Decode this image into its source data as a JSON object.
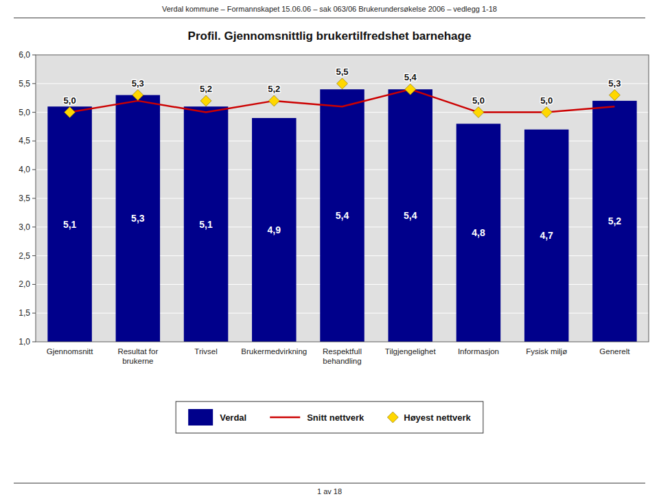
{
  "chart_data": {
    "type": "bar",
    "title": "Profil. Gjennomsnittlig brukertilfredshet  barnehage",
    "annotations": [
      "Verdal kommune – Formannskapet 15.06.06 – sak 063/06 Brukerundersøkelse 2006 – vedlegg 1-18",
      "1 av 18"
    ],
    "categories": [
      "Gjennomsnitt",
      "Resultat for\nbrukerne",
      "Trivsel",
      "Brukermedvirkning",
      "Respektfull\nbehandling",
      "Tilgjengelighet",
      "Informasjon",
      "Fysisk miljø",
      "Generelt"
    ],
    "series": [
      {
        "name": "Verdal",
        "type": "bar",
        "color": "#00008B",
        "values": [
          5.1,
          5.3,
          5.1,
          4.9,
          5.4,
          5.4,
          4.8,
          4.7,
          5.2
        ],
        "data_labels": true,
        "value_labels": [
          "5,1",
          "5,3",
          "5,1",
          "4,9",
          "5,4",
          "5,4",
          "4,8",
          "4,7",
          "5,2"
        ]
      },
      {
        "name": "Snitt nettverk",
        "type": "line",
        "color": "#CC0000",
        "marker": "none",
        "line_style": "solid",
        "values": [
          5.0,
          5.2,
          5.0,
          5.2,
          5.1,
          5.4,
          5.0,
          5.0,
          5.1
        ]
      },
      {
        "name": "Høyest nettverk",
        "type": "line",
        "color": "#FFD700",
        "marker": "diamond",
        "line_style": "none",
        "values": [
          5.0,
          5.3,
          5.2,
          5.2,
          5.5,
          5.4,
          5.0,
          5.0,
          5.3
        ],
        "data_labels": true,
        "value_labels": [
          "5,0",
          "5,3",
          "5,2",
          "5,2",
          "5,5",
          "5,4",
          "5,0",
          "5,0",
          "5,3"
        ]
      }
    ],
    "ylim": [
      1.0,
      6.0
    ],
    "yticks": [
      {
        "value": 1.0,
        "label": "1,0"
      },
      {
        "value": 1.5,
        "label": "1,5"
      },
      {
        "value": 2.0,
        "label": "2,0"
      },
      {
        "value": 2.5,
        "label": "2,5"
      },
      {
        "value": 3.0,
        "label": "3,0"
      },
      {
        "value": 3.5,
        "label": "3,5"
      },
      {
        "value": 4.0,
        "label": "4,0"
      },
      {
        "value": 4.5,
        "label": "4,5"
      },
      {
        "value": 5.0,
        "label": "5,0"
      },
      {
        "value": 5.5,
        "label": "5,5"
      },
      {
        "value": 6.0,
        "label": "6,0"
      }
    ],
    "grid": true,
    "legend": "bottom"
  }
}
